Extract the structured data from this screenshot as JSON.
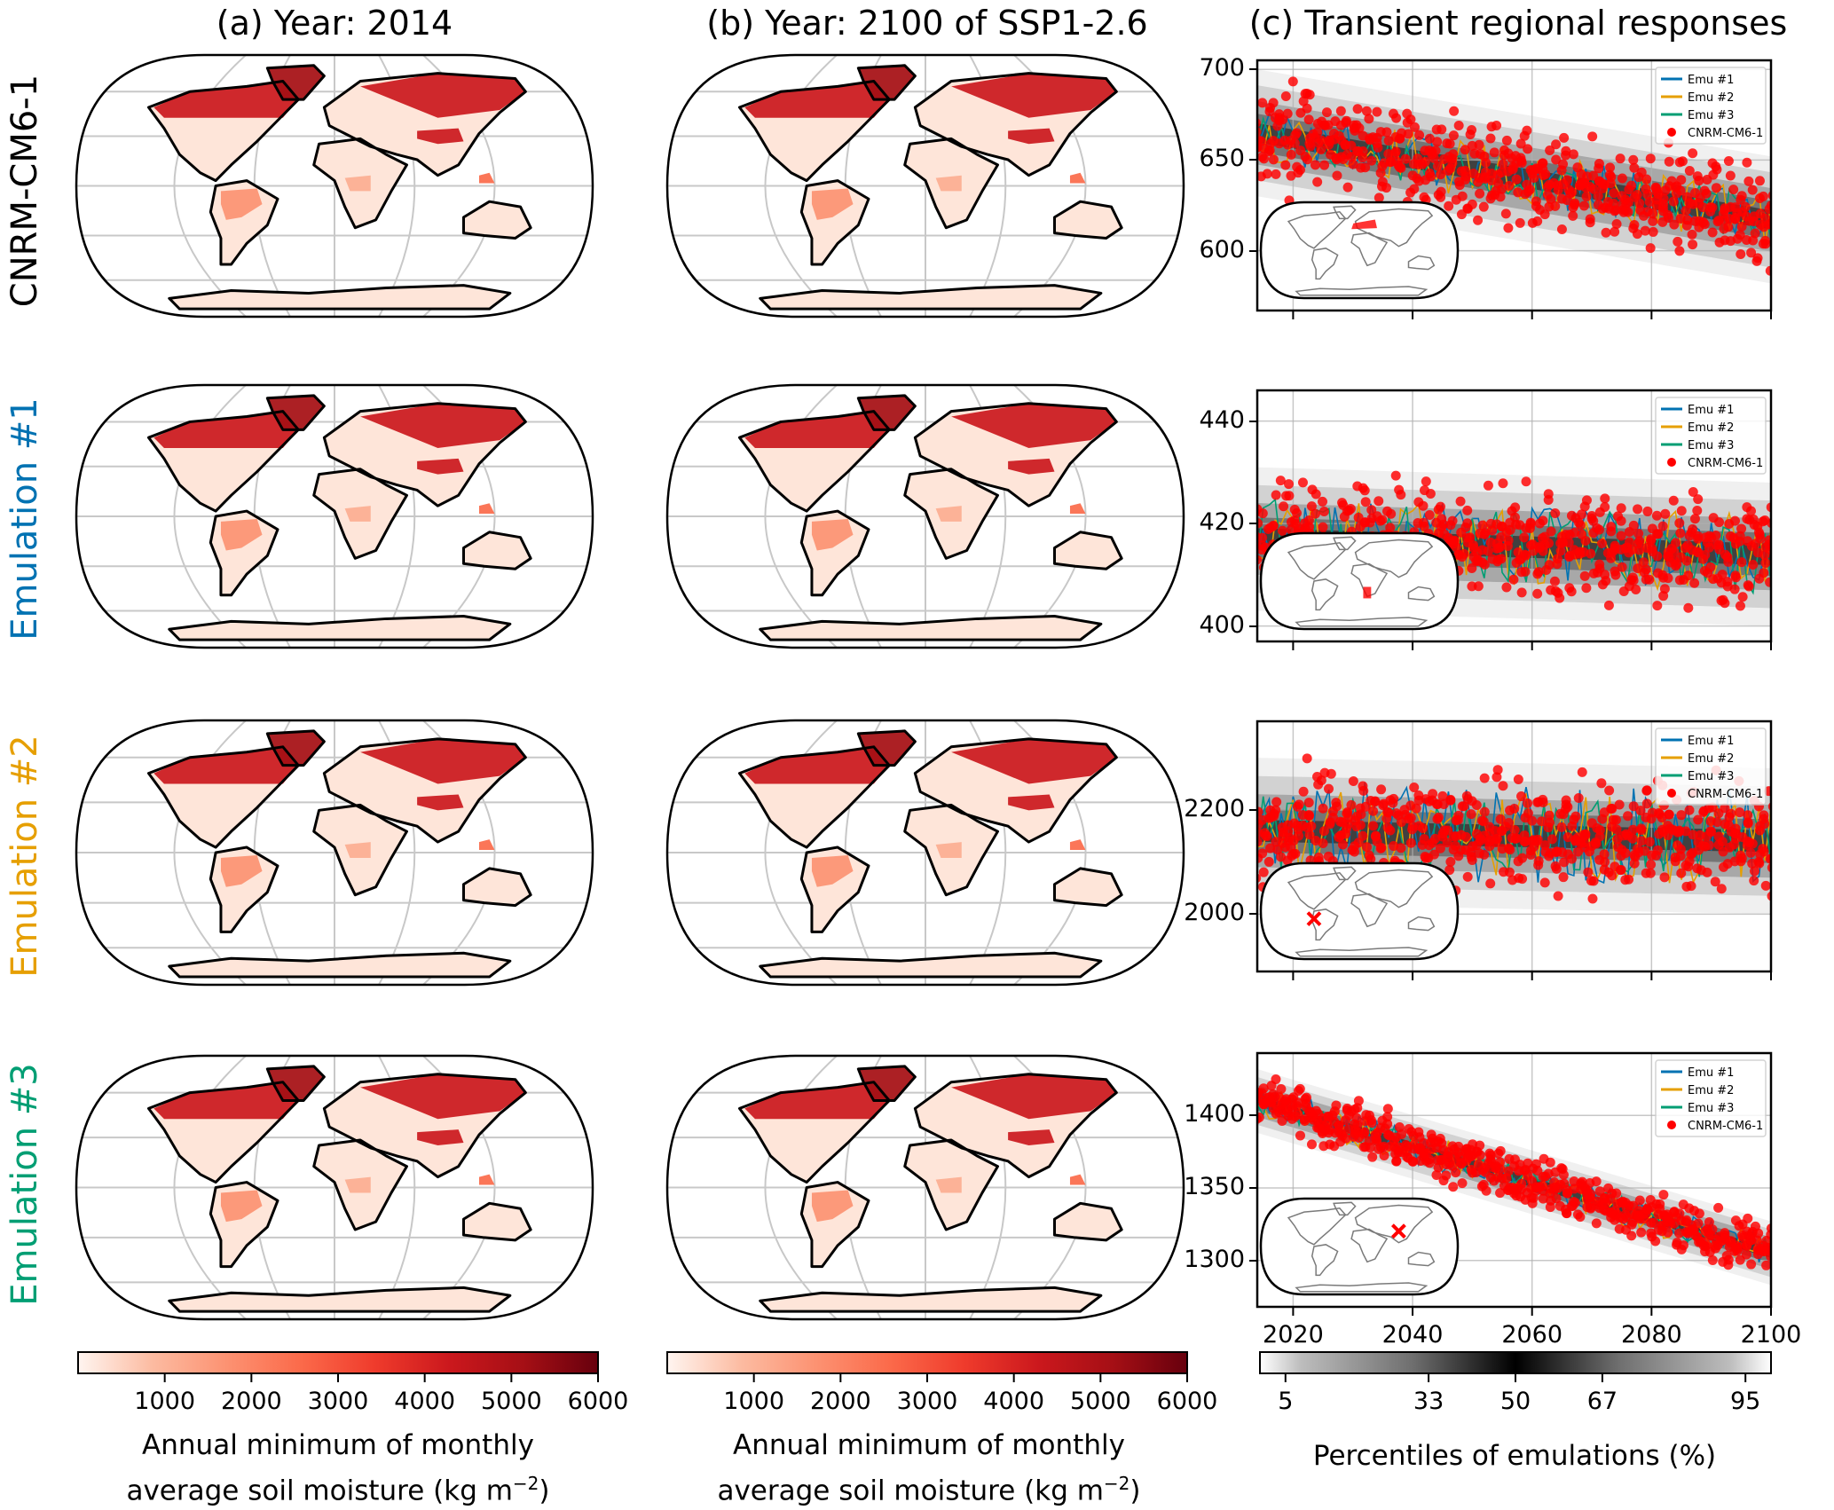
{
  "figure": {
    "column_titles": [
      "(a) Year: 2014",
      "(b) Year: 2100 of SSP1-2.6",
      "(c) Transient regional responses"
    ],
    "row_labels": [
      {
        "text": "CNRM-CM6-1",
        "color": "#000000"
      },
      {
        "text": "Emulation #1",
        "color": "#0072b2"
      },
      {
        "text": "Emulation #2",
        "color": "#e69f00"
      },
      {
        "text": "Emulation #3",
        "color": "#009e73"
      }
    ],
    "map_colorbar": {
      "ticks": [
        "1000",
        "2000",
        "3000",
        "4000",
        "5000",
        "6000"
      ],
      "tick_values": [
        1000,
        2000,
        3000,
        4000,
        5000,
        6000
      ],
      "range": [
        0,
        6000
      ],
      "label_line1": "Annual minimum of monthly",
      "label_line2": "average soil moisture (kg m",
      "label_sup": "−2",
      "label_end": ")",
      "colormap": "Reds",
      "colors": [
        "#fff5f0",
        "#fcbba1",
        "#fc9272",
        "#fb6a4a",
        "#ef3b2c",
        "#cb181d",
        "#a50f15",
        "#67000d"
      ]
    },
    "percentile_colorbar": {
      "ticks": [
        "5",
        "33",
        "50",
        "67",
        "95"
      ],
      "tick_values": [
        5,
        33,
        50,
        67,
        95
      ],
      "range": [
        0,
        100
      ],
      "label": "Percentiles of emulations (%)"
    },
    "map_regions": {
      "land_base": "#fee5d9",
      "high_latitude": "#cb181d",
      "tibet": "#cb181d",
      "amazon": "#fc9272",
      "congo": "#fcae91",
      "borneo": "#fb6a4a"
    }
  },
  "chart_data": [
    {
      "type": "line",
      "title": "(c) Transient regional responses",
      "row": "CNRM-CM6-1",
      "xlim": [
        2014,
        2100
      ],
      "ylim": [
        567,
        705
      ],
      "xticks": [
        2020,
        2040,
        2060,
        2080,
        2100
      ],
      "yticks": [
        600,
        650,
        700
      ],
      "grid": true,
      "legend": {
        "placement": "top-right",
        "entries": [
          "Emu #1",
          "Emu #2",
          "Emu #3",
          "CNRM-CM6-1"
        ]
      },
      "inset_region": {
        "type": "area",
        "description": "Western/Central Europe"
      },
      "trend": {
        "start": 665,
        "end": 617
      },
      "series": [
        {
          "name": "Emu #1",
          "color": "#0072b2",
          "kind": "line",
          "noise": 12
        },
        {
          "name": "Emu #2",
          "color": "#e69f00",
          "kind": "line",
          "noise": 12
        },
        {
          "name": "Emu #3",
          "color": "#009e73",
          "kind": "line",
          "noise": 10
        },
        {
          "name": "CNRM-CM6-1",
          "color": "#ff0000",
          "kind": "scatter",
          "noise": 18
        },
        {
          "name": "Percentiles of emulations",
          "kind": "band",
          "p5_offset": -35,
          "p95_offset": 35
        }
      ]
    },
    {
      "type": "line",
      "row": "Emulation #1",
      "xlim": [
        2014,
        2100
      ],
      "ylim": [
        397,
        446
      ],
      "xticks": [
        2020,
        2040,
        2060,
        2080,
        2100
      ],
      "yticks": [
        400,
        420,
        440
      ],
      "grid": true,
      "legend": {
        "placement": "top-right",
        "entries": [
          "Emu #1",
          "Emu #2",
          "Emu #3",
          "CNRM-CM6-1"
        ]
      },
      "inset_region": {
        "type": "area",
        "description": "Southern Africa"
      },
      "trend": {
        "start": 417,
        "end": 414
      },
      "series": [
        {
          "name": "Emu #1",
          "color": "#0072b2",
          "kind": "line",
          "noise": 6
        },
        {
          "name": "Emu #2",
          "color": "#e69f00",
          "kind": "line",
          "noise": 6
        },
        {
          "name": "Emu #3",
          "color": "#009e73",
          "kind": "line",
          "noise": 6
        },
        {
          "name": "CNRM-CM6-1",
          "color": "#ff0000",
          "kind": "scatter",
          "noise": 7
        },
        {
          "name": "Percentiles of emulations",
          "kind": "band",
          "p5_offset": -14,
          "p95_offset": 14
        }
      ]
    },
    {
      "type": "line",
      "row": "Emulation #2",
      "xlim": [
        2014,
        2100
      ],
      "ylim": [
        1890,
        2370
      ],
      "xticks": [
        2020,
        2040,
        2060,
        2080,
        2100
      ],
      "yticks": [
        2000,
        2200
      ],
      "grid": true,
      "legend": {
        "placement": "top-right",
        "entries": [
          "Emu #1",
          "Emu #2",
          "Emu #3",
          "CNRM-CM6-1"
        ]
      },
      "inset_region": {
        "type": "point",
        "description": "South America (Andes)"
      },
      "trend": {
        "start": 2160,
        "end": 2140
      },
      "series": [
        {
          "name": "Emu #1",
          "color": "#0072b2",
          "kind": "line",
          "noise": 75
        },
        {
          "name": "Emu #2",
          "color": "#e69f00",
          "kind": "line",
          "noise": 65
        },
        {
          "name": "Emu #3",
          "color": "#009e73",
          "kind": "line",
          "noise": 55
        },
        {
          "name": "CNRM-CM6-1",
          "color": "#ff0000",
          "kind": "scatter",
          "noise": 70
        },
        {
          "name": "Percentiles of emulations",
          "kind": "band",
          "p5_offset": -140,
          "p95_offset": 140
        }
      ]
    },
    {
      "type": "line",
      "row": "Emulation #3",
      "xlim": [
        2014,
        2100
      ],
      "ylim": [
        1268,
        1443
      ],
      "xticks": [
        2020,
        2040,
        2060,
        2080,
        2100
      ],
      "yticks": [
        1300,
        1350,
        1400
      ],
      "grid": true,
      "legend": {
        "placement": "top-right",
        "entries": [
          "Emu #1",
          "Emu #2",
          "Emu #3",
          "CNRM-CM6-1"
        ]
      },
      "inset_region": {
        "type": "point",
        "description": "South Asia / Tibet"
      },
      "trend": {
        "start": 1410,
        "end": 1305
      },
      "series": [
        {
          "name": "Emu #1",
          "color": "#0072b2",
          "kind": "line",
          "noise": 9
        },
        {
          "name": "Emu #2",
          "color": "#e69f00",
          "kind": "line",
          "noise": 9
        },
        {
          "name": "Emu #3",
          "color": "#009e73",
          "kind": "line",
          "noise": 7
        },
        {
          "name": "CNRM-CM6-1",
          "color": "#ff0000",
          "kind": "scatter",
          "noise": 12
        },
        {
          "name": "Percentiles of emulations",
          "kind": "band",
          "p5_offset": -22,
          "p95_offset": 22
        }
      ]
    }
  ]
}
